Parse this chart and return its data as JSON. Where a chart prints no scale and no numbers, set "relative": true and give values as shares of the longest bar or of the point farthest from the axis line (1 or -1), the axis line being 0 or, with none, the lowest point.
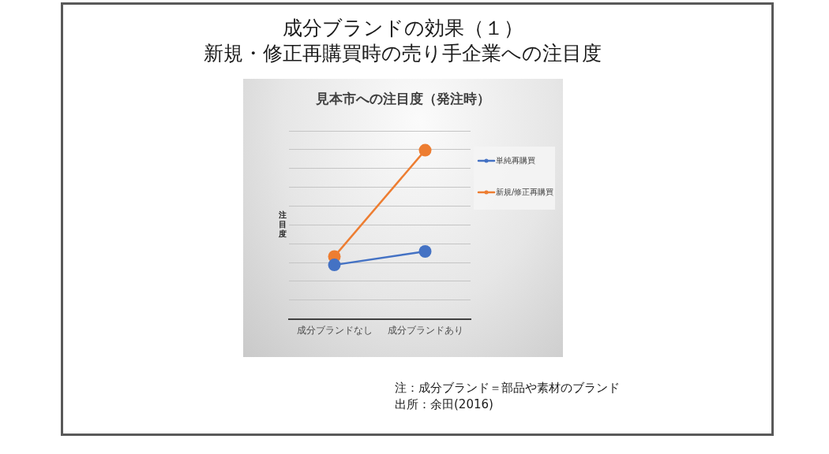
{
  "chart_data": {
    "type": "line",
    "title": "成分ブランドの効果（１）",
    "subtitle": "新規・修正再購買時の売り手企業への注目度",
    "ylabel": "注目度",
    "categories": [
      "成分ブランドなし",
      "成分ブランドあり"
    ],
    "series": [
      {
        "name": "単純再購買",
        "color": "#4472c4",
        "values": [
          0.32,
          0.4
        ]
      },
      {
        "name": "新規/修正再購買",
        "color": "#ed7d31",
        "values": [
          0.37,
          1
        ]
      }
    ],
    "relative": true,
    "grid": "y",
    "legend": "right",
    "marker": "circle",
    "annotations": [
      "見本市への注目度（発注時）",
      "注：成分ブランド＝部品や素材のブランド",
      "出所：余田(2016)"
    ]
  }
}
